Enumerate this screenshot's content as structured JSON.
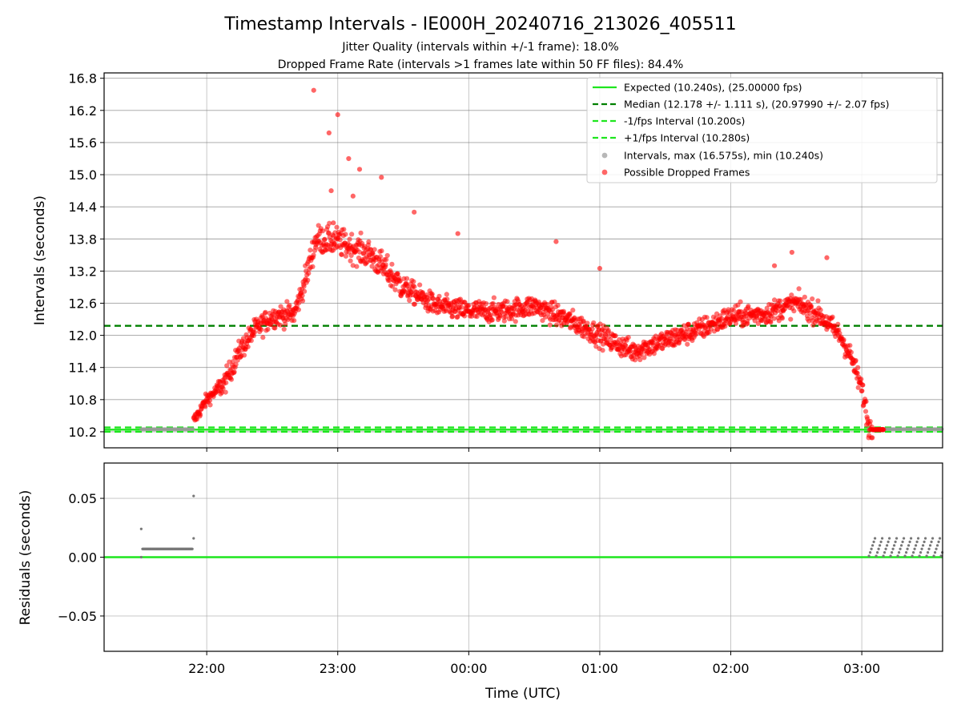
{
  "chart_data": [
    {
      "type": "scatter",
      "title": "Timestamp Intervals - IE000H_20240716_213026_405511",
      "subtitle_lines": [
        "Jitter Quality (intervals within +/-1 frame): 18.0%",
        "Dropped Frame Rate (intervals >1 frames late within 50 FF files): 84.4%"
      ],
      "ylabel": "Intervals (seconds)",
      "xlim": [
        "21:13",
        "03:37"
      ],
      "ylim": [
        9.9,
        16.9
      ],
      "y_ticks": [
        "10.2",
        "10.8",
        "11.4",
        "12.0",
        "12.6",
        "13.2",
        "13.8",
        "14.4",
        "15.0",
        "15.6",
        "16.2",
        "16.8"
      ],
      "grid": true,
      "legend_placement": "top-right",
      "expected_line": {
        "y": 10.24,
        "legend": "Expected (10.240s), (25.00000 fps)",
        "color": "#1ee61e"
      },
      "median_line": {
        "y": 12.178,
        "legend": "Median (12.178 +/- 1.111 s), (20.97990 +/- 2.07 fps)",
        "color": "#008000"
      },
      "lower_line": {
        "y": 10.2,
        "legend": "-1/fps Interval (10.200s)",
        "color": "#1ee61e"
      },
      "upper_line": {
        "y": 10.28,
        "legend": "+1/fps Interval (10.280s)",
        "color": "#1ee61e"
      },
      "series": [
        {
          "name": "Intervals, max (16.575s), min (10.240s)",
          "color": "#999999",
          "segments": [
            {
              "from": "21:30",
              "to": "21:54",
              "y": 10.247
            },
            {
              "from": "03:03",
              "to": "03:37",
              "y": 10.248
            }
          ]
        },
        {
          "name": "Possible Dropped Frames",
          "color": "#ff0000",
          "trend": [
            [
              "21:54",
              10.4
            ],
            [
              "22:00",
              10.8
            ],
            [
              "22:08",
              11.1
            ],
            [
              "22:15",
              11.7
            ],
            [
              "22:22",
              12.1
            ],
            [
              "22:30",
              12.35
            ],
            [
              "22:40",
              12.4
            ],
            [
              "22:45",
              13.0
            ],
            [
              "22:50",
              13.8
            ],
            [
              "23:00",
              13.75
            ],
            [
              "23:15",
              13.5
            ],
            [
              "23:30",
              12.9
            ],
            [
              "23:45",
              12.55
            ],
            [
              "00:00",
              12.45
            ],
            [
              "00:15",
              12.45
            ],
            [
              "00:30",
              12.55
            ],
            [
              "00:45",
              12.3
            ],
            [
              "01:00",
              12.0
            ],
            [
              "01:15",
              11.7
            ],
            [
              "01:30",
              11.9
            ],
            [
              "01:45",
              12.1
            ],
            [
              "02:00",
              12.35
            ],
            [
              "02:15",
              12.4
            ],
            [
              "02:30",
              12.6
            ],
            [
              "02:40",
              12.4
            ],
            [
              "02:50",
              12.0
            ],
            [
              "02:55",
              11.6
            ],
            [
              "03:00",
              11.0
            ],
            [
              "03:02",
              10.6
            ],
            [
              "03:03",
              10.3
            ],
            [
              "03:05",
              10.24
            ],
            [
              "03:10",
              10.24
            ]
          ],
          "noise": 0.2,
          "outliers": [
            [
              16.575,
              "22:49"
            ],
            [
              16.12,
              "23:00"
            ],
            [
              15.78,
              "22:56"
            ],
            [
              15.3,
              "23:05"
            ],
            [
              15.1,
              "23:10"
            ],
            [
              14.95,
              "23:20"
            ],
            [
              14.7,
              "22:57"
            ],
            [
              14.6,
              "23:07"
            ],
            [
              14.3,
              "23:35"
            ],
            [
              14.1,
              "22:58"
            ],
            [
              13.9,
              "23:55"
            ],
            [
              13.75,
              "00:40"
            ],
            [
              13.55,
              "02:28"
            ],
            [
              13.45,
              "02:44"
            ],
            [
              13.25,
              "01:00"
            ],
            [
              13.3,
              "02:20"
            ]
          ]
        }
      ]
    },
    {
      "type": "scatter",
      "ylabel": "Residuals (seconds)",
      "xlabel": "Time (UTC)",
      "x_ticks": [
        "22:00",
        "23:00",
        "00:00",
        "01:00",
        "02:00",
        "03:00"
      ],
      "ylim": [
        -0.08,
        0.08
      ],
      "y_ticks": [
        "0.05",
        "0.00",
        "−0.05"
      ],
      "grid": true,
      "zero_line_color": "#1ee61e",
      "residual_groups": [
        {
          "from": "21:30",
          "to": "21:54",
          "y": 0.007,
          "extra": [
            [
              "21:30",
              0.024
            ],
            [
              "21:30",
              0.0
            ],
            [
              "21:54",
              0.052
            ],
            [
              "21:54",
              0.016
            ]
          ]
        },
        {
          "from": "03:03",
          "to": "03:37",
          "y_values": [
            0.001,
            0.004,
            0.007,
            0.01,
            0.013,
            0.016
          ]
        }
      ]
    }
  ]
}
